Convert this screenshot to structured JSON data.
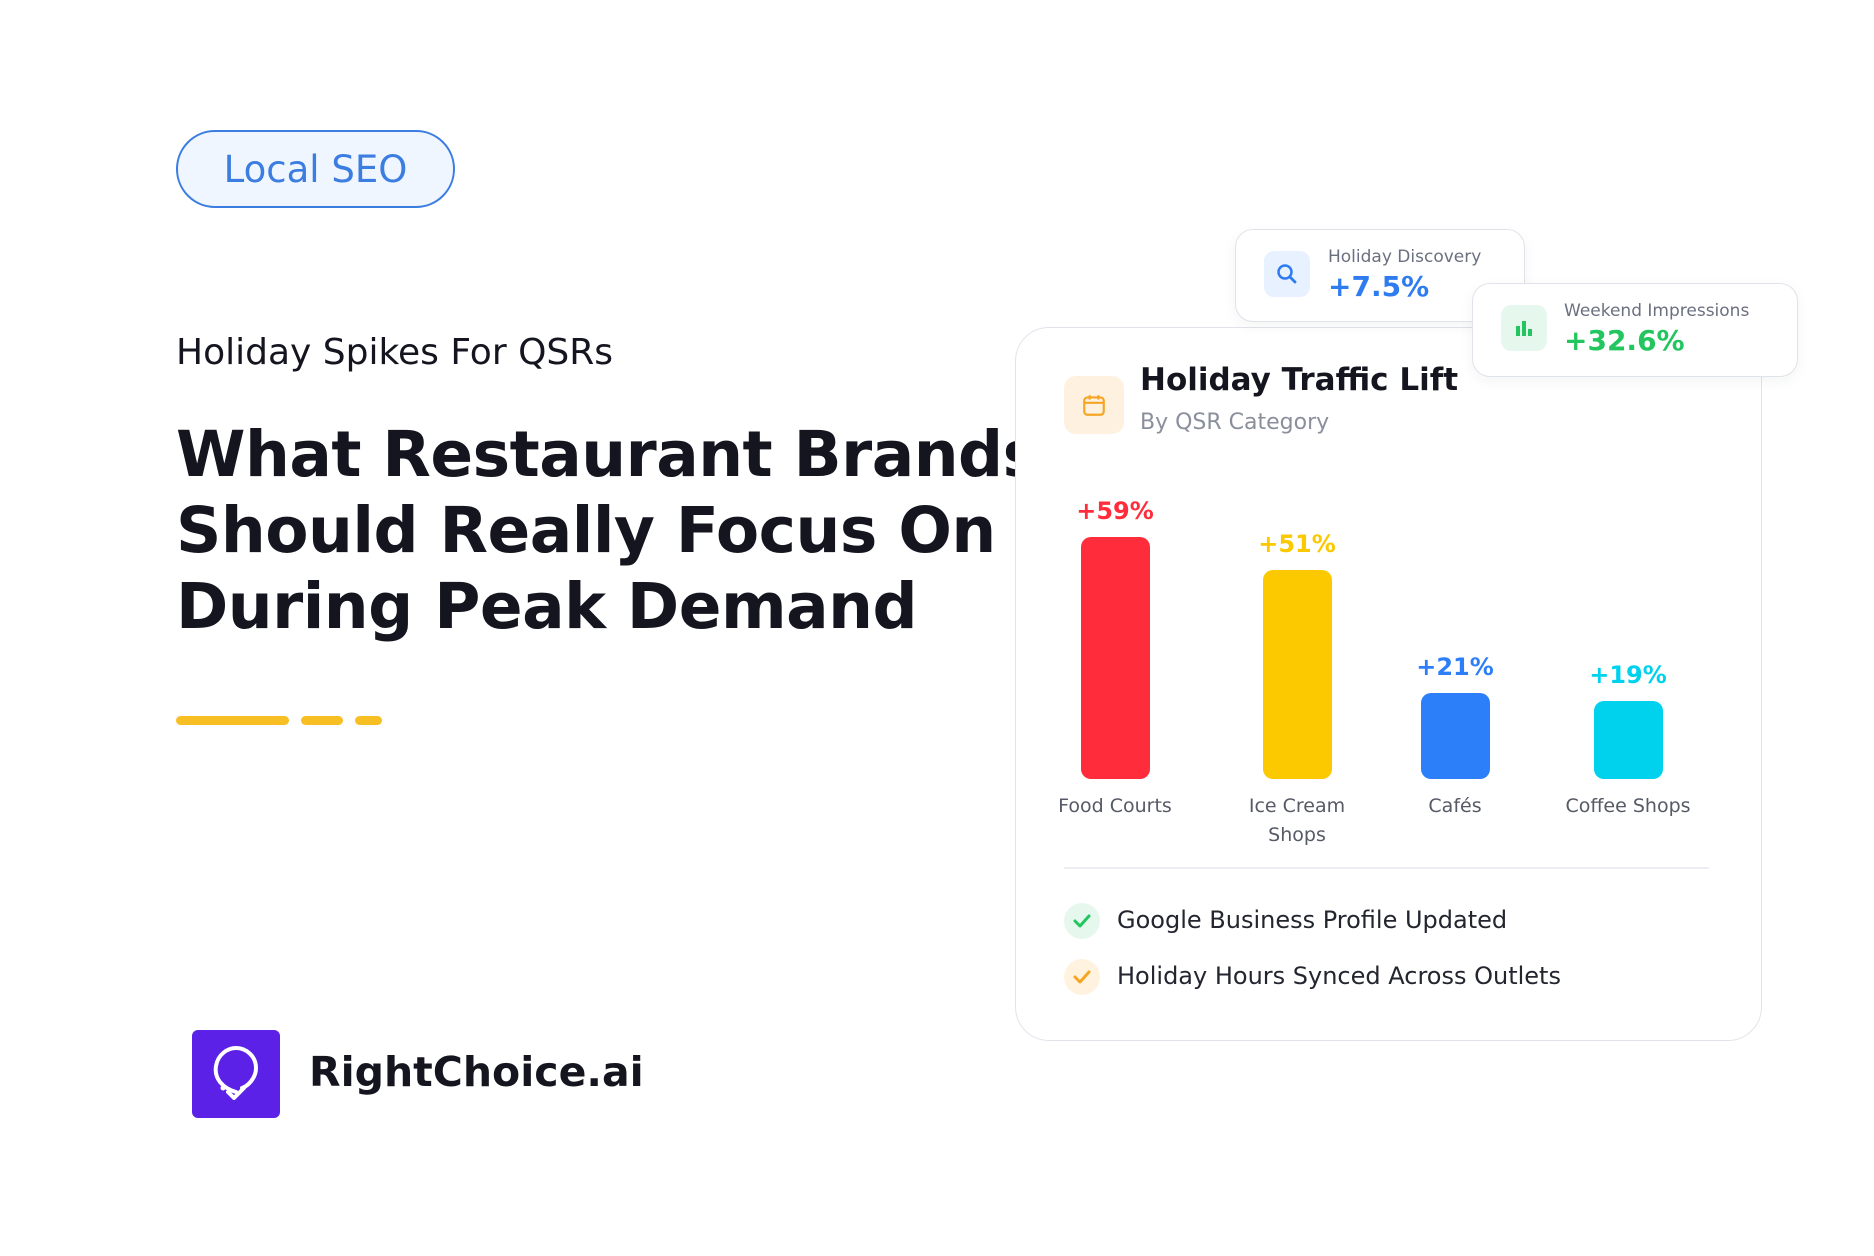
{
  "tag": "Local SEO",
  "kicker": "Holiday Spikes For QSRs",
  "headline": [
    "What Restaurant Brands",
    "Should Really Focus On",
    "During Peak Demand"
  ],
  "brand": "RightChoice.ai",
  "stats": [
    {
      "label": "Holiday Discovery",
      "value": "+7.5%"
    },
    {
      "label": "Weekend Impressions",
      "value": "+32.6%"
    }
  ],
  "checklist": [
    "Google Business Profile Updated",
    "Holiday Hours Synced Across Outlets"
  ],
  "chart_data": {
    "type": "bar",
    "title": "Holiday Traffic Lift",
    "subtitle": "By QSR Category",
    "categories": [
      "Food Courts",
      "Ice Cream Shops",
      "Cafés",
      "Coffee Shops"
    ],
    "values": [
      59,
      51,
      21,
      19
    ],
    "value_labels": [
      "+59%",
      "+51%",
      "+21%",
      "+19%"
    ],
    "colors": [
      "#ff2d3b",
      "#fcc800",
      "#2d7ff9",
      "#00d2ee"
    ]
  }
}
